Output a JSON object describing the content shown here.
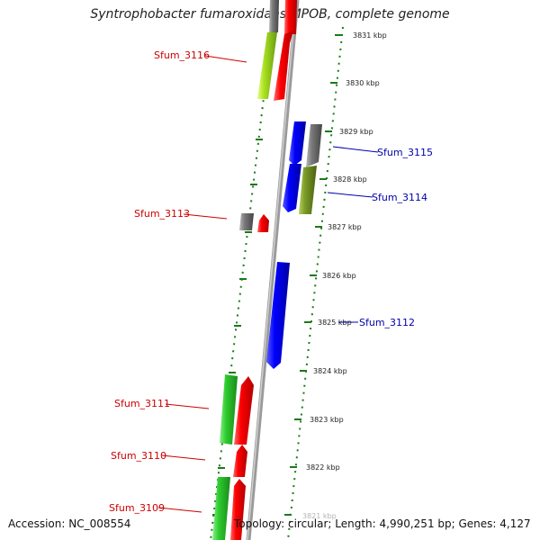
{
  "title": "Syntrophobacter fumaroxidans MPOB, complete genome",
  "footer": {
    "accession": "Accession: NC_008554",
    "topology": "Topology: circular; Length: 4,990,251 bp; Genes: 4,127"
  },
  "colors": {
    "forward_label": "#cc0000",
    "reverse_label": "#0000aa",
    "backbone": "#888888",
    "tick": "#1a7a1a"
  },
  "kbp_ticks": [
    {
      "text": "3831 kbp",
      "kbp": 3831
    },
    {
      "text": "3830 kbp",
      "kbp": 3830
    },
    {
      "text": "3829 kbp",
      "kbp": 3829
    },
    {
      "text": "3828 kbp",
      "kbp": 3828
    },
    {
      "text": "3827 kbp",
      "kbp": 3827
    },
    {
      "text": "3826 kbp",
      "kbp": 3826
    },
    {
      "text": "3825 kbp",
      "kbp": 3825
    },
    {
      "text": "3824 kbp",
      "kbp": 3824
    },
    {
      "text": "3823 kbp",
      "kbp": 3823
    },
    {
      "text": "3822 kbp",
      "kbp": 3822
    },
    {
      "text": "3821 kbp",
      "kbp": 3821
    }
  ],
  "gene_labels": [
    {
      "text": "Sfum_3116",
      "strand": "forward"
    },
    {
      "text": "Sfum_3115",
      "strand": "reverse"
    },
    {
      "text": "Sfum_3114",
      "strand": "reverse"
    },
    {
      "text": "Sfum_3113",
      "strand": "forward"
    },
    {
      "text": "Sfum_3112",
      "strand": "reverse"
    },
    {
      "text": "Sfum_3111",
      "strand": "forward"
    },
    {
      "text": "Sfum_3110",
      "strand": "forward"
    },
    {
      "text": "Sfum_3109",
      "strand": "forward"
    }
  ]
}
